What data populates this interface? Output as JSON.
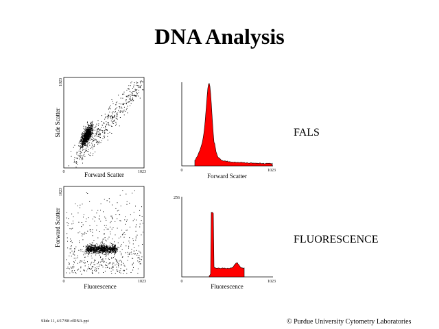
{
  "title": "DNA Analysis",
  "panels": [
    {
      "x_label": "Forward Scatter",
      "y_label": "Side Scatter",
      "ticks": [
        "0",
        "1023",
        "1023"
      ]
    },
    {
      "x_label": "Forward Scatter",
      "ticks": [
        "0",
        "1023"
      ]
    },
    {
      "x_label": "Fluorescence",
      "y_label": "Forward Scatter",
      "ticks": [
        "0",
        "1023",
        "1023"
      ]
    },
    {
      "x_label": "Fluorescence",
      "ticks": [
        "0",
        "1023",
        "256"
      ]
    }
  ],
  "labels": [
    "FALS",
    "FLUORESCENCE"
  ],
  "footer": {
    "left": "Slide 11, 4/17/98 cfDNA.ppt",
    "right": "© Purdue University Cytometry Laboratories"
  }
}
